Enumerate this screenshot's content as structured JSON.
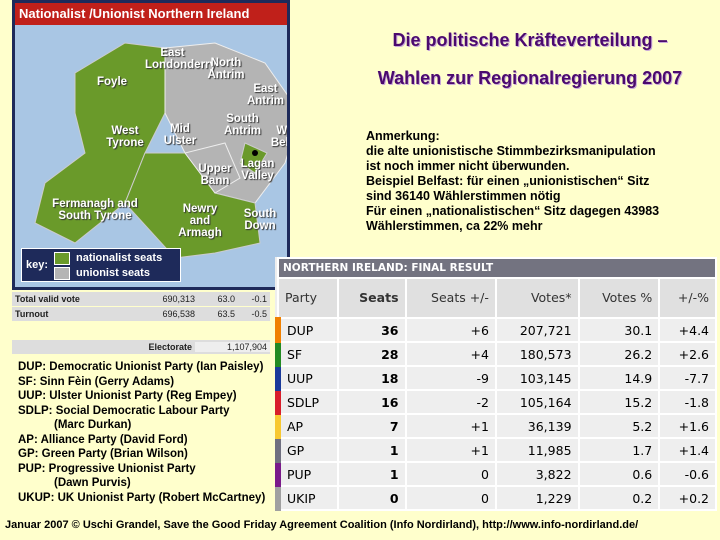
{
  "map": {
    "title": "Nationalist /Unionist Northern Ireland",
    "labels": [
      "East Londonderry",
      "North Antrim",
      "Foyle",
      "East Antrim",
      "West Tyrone",
      "Mid Ulster",
      "South Antrim",
      "West Belfast",
      "Lagan Valley",
      "Upper Bann",
      "Fermanagh and South Tyrone",
      "Newry and Armagh",
      "South Down"
    ],
    "key": {
      "label": "key:",
      "nationalist": "nationalist seats",
      "unionist": "unionist seats"
    },
    "colors": {
      "nationalist": "#6a9a2a",
      "unionist": "#b4b4b4",
      "sea": "#a9c6e4"
    }
  },
  "stats": {
    "rows": [
      {
        "label": "Total valid vote",
        "votes": "690,313",
        "pct": "63.0",
        "change": "-0.1"
      },
      {
        "label": "Turnout",
        "votes": "696,538",
        "pct": "63.5",
        "change": "-0.5"
      }
    ],
    "electorate_label": "Electorate",
    "electorate": "1,107,904"
  },
  "title": {
    "line1": "Die politische Kräfteverteilung –",
    "line2": "Wahlen zur Regionalregierung 2007"
  },
  "note": [
    "Anmerkung:",
    "die alte unionistische Stimmbezirksmanipulation",
    "ist noch immer nicht überwunden.",
    "Beispiel Belfast: für einen „unionistischen“ Sitz",
    "sind 36140 Wählerstimmen nötig",
    "Für einen „nationalistischen“ Sitz dagegen 43983",
    "Wählerstimmen, ca 22% mehr"
  ],
  "legend": [
    "DUP: Democratic Unionist Party (Ian Paisley)",
    "SF: Sinn Fèin (Gerry Adams)",
    "UUP: Ulster Unionist Party (Reg Empey)",
    "SDLP: Social Democratic Labour Party",
    "(Marc Durkan)",
    "AP: Alliance Party (David Ford)",
    "GP: Green Party (Brian Wilson)",
    "PUP: Progressive Unionist Party",
    "(Dawn Purvis)",
    "UKUP: UK Unionist Party (Robert McCartney)"
  ],
  "results": {
    "caption": "NORTHERN IRELAND: FINAL RESULT",
    "headers": [
      "Party",
      "Seats",
      "Seats +/-",
      "Votes*",
      "Votes %",
      "+/-%"
    ],
    "rows": [
      {
        "party": "DUP",
        "seats": "36",
        "seats_change": "+6",
        "votes": "207,721",
        "pct": "30.1",
        "pct_change": "+4.4",
        "color": "#f08000"
      },
      {
        "party": "SF",
        "seats": "28",
        "seats_change": "+4",
        "votes": "180,573",
        "pct": "26.2",
        "pct_change": "+2.6",
        "color": "#228b22"
      },
      {
        "party": "UUP",
        "seats": "18",
        "seats_change": "-9",
        "votes": "103,145",
        "pct": "14.9",
        "pct_change": "-7.7",
        "color": "#1a3a9a"
      },
      {
        "party": "SDLP",
        "seats": "16",
        "seats_change": "-2",
        "votes": "105,164",
        "pct": "15.2",
        "pct_change": "-1.8",
        "color": "#d81e2a"
      },
      {
        "party": "AP",
        "seats": "7",
        "seats_change": "+1",
        "votes": "36,139",
        "pct": "5.2",
        "pct_change": "+1.6",
        "color": "#f8c830"
      },
      {
        "party": "GP",
        "seats": "1",
        "seats_change": "+1",
        "votes": "11,985",
        "pct": "1.7",
        "pct_change": "+1.4",
        "color": "#707080"
      },
      {
        "party": "PUP",
        "seats": "1",
        "seats_change": "0",
        "votes": "3,822",
        "pct": "0.6",
        "pct_change": "-0.6",
        "color": "#7a1a8a"
      },
      {
        "party": "UKIP",
        "seats": "0",
        "seats_change": "0",
        "votes": "1,229",
        "pct": "0.2",
        "pct_change": "+0.2",
        "color": "#a0a0a0"
      }
    ]
  },
  "footer": "Januar 2007   © Uschi Grandel, Save the Good Friday Agreement Coalition (Info Nordirland), http://www.info-nordirland.de/"
}
